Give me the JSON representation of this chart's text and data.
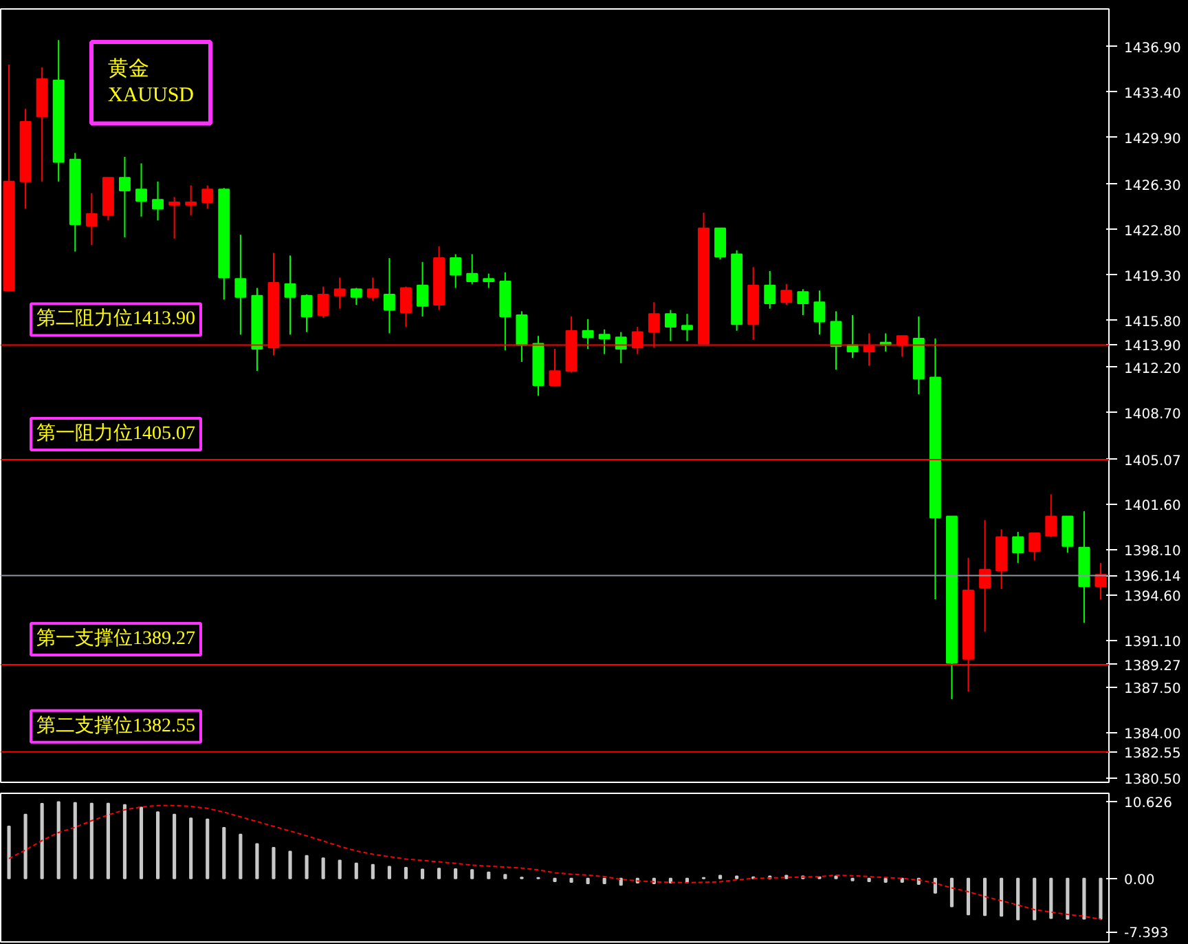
{
  "chart_data": [
    {
      "type": "candlestick",
      "categories": [
        null,
        null,
        null,
        null,
        null,
        null,
        null,
        null,
        null,
        null,
        null,
        null,
        null,
        null,
        null,
        null,
        null,
        null,
        null,
        null,
        null,
        null,
        null,
        null,
        null,
        null,
        null,
        null,
        null,
        null,
        null,
        null,
        null,
        null,
        null,
        null,
        null,
        null,
        null,
        null,
        null,
        null,
        null,
        null,
        null,
        null,
        null,
        null,
        null,
        null,
        null,
        null,
        null,
        null,
        null,
        null,
        null,
        null,
        null,
        null,
        null,
        null,
        null,
        null,
        null,
        null,
        null
      ],
      "ohlc": [
        [
          1418.1,
          1435.5,
          1418.1,
          1426.5
        ],
        [
          1426.5,
          1432.1,
          1424.4,
          1431.1
        ],
        [
          1431.5,
          1435.3,
          1426.5,
          1434.4
        ],
        [
          1434.3,
          1437.4,
          1426.5,
          1428.0
        ],
        [
          1428.2,
          1428.7,
          1421.1,
          1423.2
        ],
        [
          1423.1,
          1425.6,
          1421.6,
          1424.0
        ],
        [
          1423.9,
          1426.8,
          1423.5,
          1426.8
        ],
        [
          1426.8,
          1428.4,
          1422.2,
          1425.8
        ],
        [
          1425.9,
          1427.9,
          1423.8,
          1425.0
        ],
        [
          1425.1,
          1426.5,
          1423.5,
          1424.4
        ],
        [
          1424.7,
          1425.3,
          1422.1,
          1424.9
        ],
        [
          1424.7,
          1426.2,
          1423.9,
          1424.9
        ],
        [
          1424.9,
          1426.2,
          1424.4,
          1425.9
        ],
        [
          1425.9,
          1426.0,
          1417.4,
          1419.1
        ],
        [
          1419.0,
          1422.4,
          1414.7,
          1417.6
        ],
        [
          1417.7,
          1418.3,
          1411.9,
          1413.6
        ],
        [
          1413.7,
          1421.0,
          1413.1,
          1418.7
        ],
        [
          1418.6,
          1420.8,
          1414.7,
          1417.6
        ],
        [
          1417.7,
          1417.8,
          1414.9,
          1416.1
        ],
        [
          1416.2,
          1418.4,
          1416.0,
          1417.8
        ],
        [
          1417.7,
          1419.1,
          1416.7,
          1418.2
        ],
        [
          1418.2,
          1418.3,
          1417.0,
          1417.6
        ],
        [
          1417.6,
          1419.1,
          1417.3,
          1418.2
        ],
        [
          1417.8,
          1420.6,
          1414.8,
          1416.6
        ],
        [
          1416.4,
          1418.4,
          1415.3,
          1418.3
        ],
        [
          1418.5,
          1420.3,
          1416.1,
          1416.9
        ],
        [
          1417.0,
          1421.5,
          1416.6,
          1420.6
        ],
        [
          1420.6,
          1420.9,
          1418.3,
          1419.3
        ],
        [
          1419.4,
          1420.9,
          1418.6,
          1418.8
        ],
        [
          1419.0,
          1419.4,
          1418.3,
          1418.8
        ],
        [
          1418.8,
          1419.5,
          1413.5,
          1416.1
        ],
        [
          1416.2,
          1416.5,
          1412.6,
          1413.9
        ],
        [
          1414.0,
          1414.6,
          1410.0,
          1410.8
        ],
        [
          1410.8,
          1413.6,
          1410.7,
          1411.9
        ],
        [
          1411.9,
          1416.1,
          1411.8,
          1415.0
        ],
        [
          1415.0,
          1415.9,
          1413.6,
          1414.5
        ],
        [
          1414.7,
          1415.1,
          1413.2,
          1414.4
        ],
        [
          1414.5,
          1414.9,
          1412.5,
          1413.6
        ],
        [
          1413.7,
          1415.3,
          1413.2,
          1414.9
        ],
        [
          1414.9,
          1417.2,
          1413.7,
          1416.3
        ],
        [
          1416.3,
          1416.6,
          1414.2,
          1415.3
        ],
        [
          1415.4,
          1416.3,
          1414.2,
          1415.1
        ],
        [
          1414.0,
          1424.1,
          1414.0,
          1422.9
        ],
        [
          1422.9,
          1422.9,
          1420.5,
          1420.7
        ],
        [
          1420.9,
          1421.2,
          1415.0,
          1415.5
        ],
        [
          1415.5,
          1419.9,
          1414.3,
          1418.5
        ],
        [
          1418.5,
          1419.6,
          1416.7,
          1417.1
        ],
        [
          1417.2,
          1418.6,
          1417.0,
          1418.1
        ],
        [
          1418.0,
          1418.2,
          1416.2,
          1417.1
        ],
        [
          1417.2,
          1418.1,
          1414.7,
          1415.7
        ],
        [
          1415.7,
          1416.5,
          1412.0,
          1413.8
        ],
        [
          1413.9,
          1416.2,
          1412.9,
          1413.4
        ],
        [
          1413.4,
          1414.8,
          1412.3,
          1413.8
        ],
        [
          1414.1,
          1414.8,
          1413.4,
          1413.9
        ],
        [
          1413.9,
          1414.6,
          1413.0,
          1414.6
        ],
        [
          1414.4,
          1416.1,
          1410.1,
          1411.3
        ],
        [
          1411.4,
          1414.4,
          1394.3,
          1400.6
        ],
        [
          1400.7,
          1400.7,
          1386.6,
          1389.4
        ],
        [
          1389.7,
          1397.5,
          1387.2,
          1395.0
        ],
        [
          1395.2,
          1400.4,
          1391.8,
          1396.6
        ],
        [
          1396.5,
          1399.7,
          1395.1,
          1399.1
        ],
        [
          1399.1,
          1399.5,
          1397.1,
          1397.9
        ],
        [
          1398.0,
          1399.4,
          1397.3,
          1399.4
        ],
        [
          1399.2,
          1402.4,
          1399.1,
          1400.7
        ],
        [
          1400.7,
          1400.7,
          1397.9,
          1398.4
        ],
        [
          1398.3,
          1401.1,
          1392.5,
          1395.3
        ],
        [
          1395.3,
          1397.1,
          1394.3,
          1396.2
        ]
      ],
      "colors": [
        "#ff0000",
        "#ff0000",
        "#ff0000",
        "#00ff00",
        "#00ff00",
        "#ff0000",
        "#ff0000",
        "#00ff00",
        "#00ff00",
        "#00ff00",
        "#ff0000",
        "#ff0000",
        "#ff0000",
        "#00ff00",
        "#00ff00",
        "#00ff00",
        "#ff0000",
        "#00ff00",
        "#00ff00",
        "#ff0000",
        "#ff0000",
        "#00ff00",
        "#ff0000",
        "#00ff00",
        "#ff0000",
        "#00ff00",
        "#ff0000",
        "#00ff00",
        "#00ff00",
        "#00ff00",
        "#00ff00",
        "#00ff00",
        "#00ff00",
        "#ff0000",
        "#ff0000",
        "#00ff00",
        "#00ff00",
        "#00ff00",
        "#ff0000",
        "#ff0000",
        "#00ff00",
        "#00ff00",
        "#ff0000",
        "#00ff00",
        "#00ff00",
        "#ff0000",
        "#00ff00",
        "#ff0000",
        "#00ff00",
        "#00ff00",
        "#00ff00",
        "#00ff00",
        "#ff0000",
        "#00ff00",
        "#ff0000",
        "#00ff00",
        "#00ff00",
        "#00ff00",
        "#ff0000",
        "#ff0000",
        "#ff0000",
        "#00ff00",
        "#ff0000",
        "#ff0000",
        "#00ff00",
        "#00ff00",
        "#ff0000"
      ],
      "ylim": [
        1380.2,
        1439.8
      ],
      "yticks": [
        {
          "value": 1436.9,
          "label": "1436.90"
        },
        {
          "value": 1433.4,
          "label": "1433.40"
        },
        {
          "value": 1429.9,
          "label": "1429.90"
        },
        {
          "value": 1426.3,
          "label": "1426.30"
        },
        {
          "value": 1422.8,
          "label": "1422.80"
        },
        {
          "value": 1419.3,
          "label": "1419.30"
        },
        {
          "value": 1415.8,
          "label": "1415.80"
        },
        {
          "value": 1412.2,
          "label": "1412.20"
        },
        {
          "value": 1408.7,
          "label": "1408.70"
        },
        {
          "value": 1401.6,
          "label": "1401.60"
        },
        {
          "value": 1398.1,
          "label": "1398.10"
        },
        {
          "value": 1394.6,
          "label": "1394.60"
        },
        {
          "value": 1391.1,
          "label": "1391.10"
        },
        {
          "value": 1387.5,
          "label": "1387.50"
        },
        {
          "value": 1384.0,
          "label": "1384.00"
        },
        {
          "value": 1380.5,
          "label": "1380.50"
        }
      ],
      "tick_labels": "y",
      "grid": false,
      "ref_lines": [
        {
          "axis": "y",
          "value": 1413.9,
          "label": "1413.90",
          "color": "#ff0000"
        },
        {
          "axis": "y",
          "value": 1405.07,
          "label": "1405.07",
          "color": "#ff0000"
        },
        {
          "axis": "y",
          "value": 1396.14,
          "label": "1396.14",
          "color": "#8c96a0"
        },
        {
          "axis": "y",
          "value": 1389.27,
          "label": "1389.27",
          "color": "#ff0000"
        },
        {
          "axis": "y",
          "value": 1382.55,
          "label": "1382.55",
          "color": "#ff0000"
        }
      ],
      "annotations": [
        "黄金",
        "XAUUSD",
        {
          "text": "第二阻力位1413.90",
          "y": 1413.9
        },
        {
          "text": "第一阻力位1405.07",
          "y": 1405.07
        },
        {
          "text": "第一支撑位1389.27",
          "y": 1389.27
        },
        {
          "text": "第二支撑位1382.55",
          "y": 1382.55
        }
      ]
    },
    {
      "type": "bar",
      "categories": [
        null,
        null,
        null,
        null,
        null,
        null,
        null,
        null,
        null,
        null,
        null,
        null,
        null,
        null,
        null,
        null,
        null,
        null,
        null,
        null,
        null,
        null,
        null,
        null,
        null,
        null,
        null,
        null,
        null,
        null,
        null,
        null,
        null,
        null,
        null,
        null,
        null,
        null,
        null,
        null,
        null,
        null,
        null,
        null,
        null,
        null,
        null,
        null,
        null,
        null,
        null,
        null,
        null,
        null,
        null,
        null,
        null,
        null,
        null,
        null,
        null,
        null,
        null,
        null,
        null,
        null,
        null
      ],
      "series": [
        {
          "type": "bar",
          "color": "#c8c8c8",
          "values": [
            7.22,
            8.86,
            10.37,
            10.6,
            10.5,
            10.4,
            10.4,
            10.2,
            9.85,
            9.19,
            8.86,
            8.34,
            8.21,
            7.03,
            6.11,
            4.79,
            4.27,
            3.74,
            3.15,
            2.82,
            2.5,
            2.1,
            1.9,
            1.64,
            1.51,
            1.25,
            1.38,
            1.31,
            1.18,
            0.85,
            0.53,
            0.13,
            0.1,
            -0.4,
            -0.5,
            -0.7,
            -0.7,
            -0.9,
            -0.6,
            -0.7,
            -0.6,
            -0.6,
            0.1,
            0.4,
            0.3,
            0.2,
            0.3,
            0.4,
            0.3,
            0.2,
            0.3,
            -0.3,
            -0.4,
            -0.5,
            -0.5,
            -0.8,
            -2.0,
            -3.9,
            -5.0,
            -5.1,
            -5.2,
            -5.7,
            -5.7,
            -5.5,
            -5.6,
            -5.6,
            -5.6
          ]
        },
        {
          "type": "line",
          "color": "#ff0000",
          "line_style": "dashed",
          "values": [
            2.76,
            3.94,
            5.25,
            6.37,
            7.09,
            8.01,
            8.8,
            9.52,
            9.91,
            10.1,
            10.1,
            9.98,
            9.72,
            9.19,
            8.54,
            7.88,
            7.22,
            6.57,
            5.91,
            5.19,
            4.46,
            3.81,
            3.35,
            3.02,
            2.69,
            2.5,
            2.3,
            2.1,
            1.84,
            1.71,
            1.58,
            1.44,
            1.18,
            0.79,
            0.59,
            0.46,
            0.26,
            -0.13,
            -0.33,
            -0.46,
            -0.53,
            -0.59,
            -0.53,
            -0.46,
            -0.2,
            0.0,
            0.07,
            0.13,
            0.2,
            0.26,
            0.46,
            0.39,
            0.26,
            0.13,
            0.0,
            -0.2,
            -0.66,
            -1.31,
            -1.84,
            -2.5,
            -3.09,
            -3.68,
            -4.33,
            -4.66,
            -4.99,
            -5.25,
            -5.65
          ]
        }
      ],
      "ylim": [
        -8.8,
        11.8
      ],
      "yticks": [
        {
          "value": 10.626,
          "label": "10.626"
        },
        {
          "value": 0,
          "label": "0.00"
        },
        {
          "value": -7.393,
          "label": "-7.393"
        }
      ],
      "tick_labels": "y",
      "grid": false
    }
  ]
}
